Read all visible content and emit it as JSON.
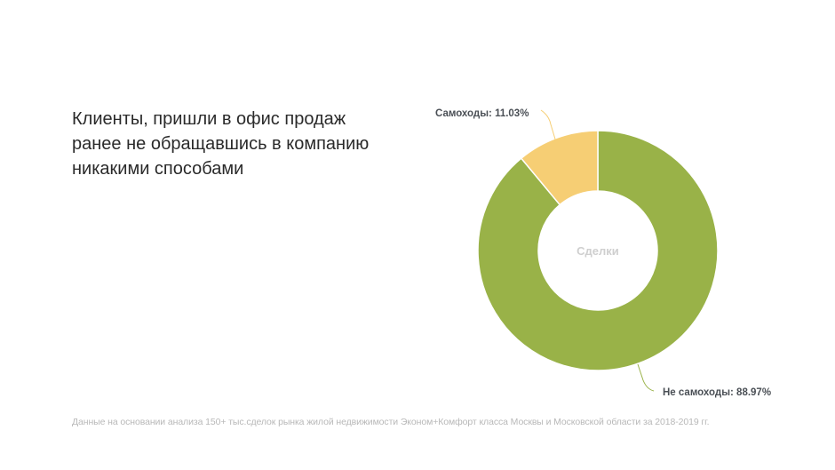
{
  "headline": {
    "lines": [
      "Клиенты, пришли в офис продаж",
      "ранее не обращавшись в компанию",
      "никакими способами"
    ]
  },
  "footnote": "Данные на основании анализа 150+ тыс.сделок рынка жилой недвижимости Эконом+Комфорт класса Москвы и Московской области за 2018-2019 гг.",
  "chart_data": {
    "type": "pie",
    "subtype": "donut",
    "center_label": "Сделки",
    "slices": [
      {
        "label": "Самоходы: 11.03%",
        "name": "Самоходы",
        "value": 11.03,
        "color": "#f6ce74"
      },
      {
        "label": "Не самоходы: 88.97%",
        "name": "Не самоходы",
        "value": 88.97,
        "color": "#99b248"
      }
    ],
    "legend": "none"
  }
}
